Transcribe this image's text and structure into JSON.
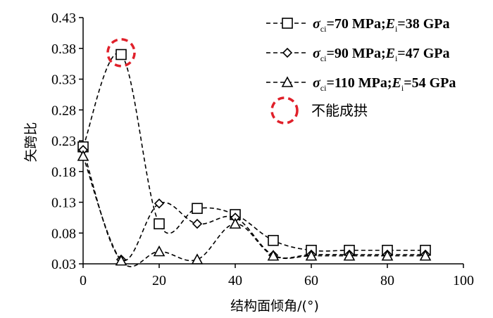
{
  "chart_data": {
    "type": "line",
    "title": "",
    "xlabel": "结构面倾角/(°)",
    "ylabel": "矢跨比",
    "xlim": [
      0,
      100
    ],
    "ylim": [
      0.03,
      0.43
    ],
    "x_ticks": [
      "0",
      "20",
      "40",
      "60",
      "80",
      "100"
    ],
    "y_ticks": [
      "0.03",
      "0.08",
      "0.13",
      "0.18",
      "0.23",
      "0.28",
      "0.33",
      "0.38",
      "0.43"
    ],
    "grid": false,
    "legend_position": "top-right",
    "series": [
      {
        "legend": {
          "sym": "σ",
          "sub1": "ci",
          "mid": "=70 MPa;",
          "e": "E",
          "sub2": "i",
          "end": "=38 GPa"
        },
        "marker": "square",
        "x": [
          0,
          10,
          20,
          30,
          40,
          50,
          60,
          70,
          80,
          90
        ],
        "y": [
          0.22,
          0.37,
          0.095,
          0.12,
          0.11,
          0.068,
          0.052,
          0.052,
          0.052,
          0.052
        ]
      },
      {
        "legend": {
          "sym": "σ",
          "sub1": "ci",
          "mid": "=90 MPa;",
          "e": "E",
          "sub2": "i",
          "end": "=47 GPa"
        },
        "marker": "diamond",
        "x": [
          0,
          10,
          20,
          30,
          40,
          50,
          60,
          70,
          80,
          90
        ],
        "y": [
          0.215,
          0.037,
          0.128,
          0.095,
          0.105,
          0.044,
          0.045,
          0.045,
          0.045,
          0.045
        ]
      },
      {
        "legend": {
          "sym": "σ",
          "sub1": "ci",
          "mid": "=110 MPa;",
          "e": "E",
          "sub2": "i",
          "end": "=54 GPa"
        },
        "marker": "triangle",
        "x": [
          0,
          10,
          20,
          30,
          40,
          50,
          60,
          70,
          80,
          90
        ],
        "y": [
          0.205,
          0.035,
          0.05,
          0.037,
          0.095,
          0.043,
          0.043,
          0.043,
          0.043,
          0.043
        ]
      }
    ],
    "highlight": {
      "label": "不能成拱",
      "x": 10,
      "y": 0.373,
      "color": "#e0202a"
    }
  }
}
